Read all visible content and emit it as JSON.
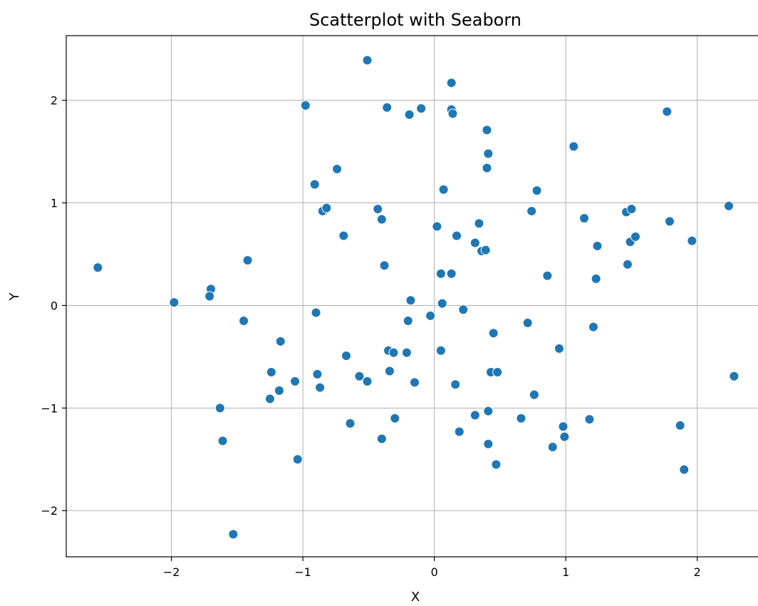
{
  "chart_data": {
    "type": "scatter",
    "title": "Scatterplot with Seaborn",
    "xlabel": "X",
    "ylabel": "Y",
    "xlim": [
      -2.8,
      2.5
    ],
    "ylim": [
      -2.45,
      2.63
    ],
    "grid": true,
    "point_color": "#1f77b4",
    "x_ticks": [
      {
        "value": -2,
        "label": "−2"
      },
      {
        "value": -1,
        "label": "−1"
      },
      {
        "value": 0,
        "label": "0"
      },
      {
        "value": 1,
        "label": "1"
      },
      {
        "value": 2,
        "label": "2"
      }
    ],
    "y_ticks": [
      {
        "value": -2,
        "label": "−2"
      },
      {
        "value": -1,
        "label": "−1"
      },
      {
        "value": 0,
        "label": "0"
      },
      {
        "value": 1,
        "label": "1"
      },
      {
        "value": 2,
        "label": "2"
      }
    ],
    "series": [
      {
        "points": [
          [
            -2.56,
            0.37
          ],
          [
            -1.98,
            0.03
          ],
          [
            -1.7,
            0.16
          ],
          [
            -1.71,
            0.09
          ],
          [
            -1.42,
            0.44
          ],
          [
            -1.45,
            -0.15
          ],
          [
            -1.63,
            -1.0
          ],
          [
            -1.61,
            -1.32
          ],
          [
            -1.53,
            -2.23
          ],
          [
            -1.24,
            -0.65
          ],
          [
            -1.25,
            -0.91
          ],
          [
            -1.17,
            -0.35
          ],
          [
            -1.18,
            -0.83
          ],
          [
            -1.06,
            -0.74
          ],
          [
            -1.04,
            -1.5
          ],
          [
            -0.98,
            1.95
          ],
          [
            -0.91,
            1.18
          ],
          [
            -0.9,
            -0.07
          ],
          [
            -0.89,
            -0.67
          ],
          [
            -0.87,
            -0.8
          ],
          [
            -0.85,
            0.92
          ],
          [
            -0.82,
            0.95
          ],
          [
            -0.74,
            1.33
          ],
          [
            -0.69,
            0.68
          ],
          [
            -0.67,
            -0.49
          ],
          [
            -0.64,
            -1.15
          ],
          [
            -0.57,
            -0.69
          ],
          [
            -0.51,
            -0.74
          ],
          [
            -0.51,
            2.39
          ],
          [
            -0.43,
            0.94
          ],
          [
            -0.4,
            0.84
          ],
          [
            -0.4,
            -1.3
          ],
          [
            -0.38,
            0.39
          ],
          [
            -0.36,
            1.93
          ],
          [
            -0.35,
            -0.44
          ],
          [
            -0.34,
            -0.64
          ],
          [
            -0.31,
            -0.46
          ],
          [
            -0.3,
            -1.1
          ],
          [
            -0.21,
            -0.46
          ],
          [
            -0.2,
            -0.15
          ],
          [
            -0.19,
            1.86
          ],
          [
            -0.18,
            0.05
          ],
          [
            -0.15,
            -0.75
          ],
          [
            -0.1,
            1.92
          ],
          [
            -0.03,
            -0.1
          ],
          [
            0.02,
            0.77
          ],
          [
            0.05,
            0.31
          ],
          [
            0.05,
            -0.44
          ],
          [
            0.06,
            0.02
          ],
          [
            0.07,
            1.13
          ],
          [
            0.13,
            2.17
          ],
          [
            0.13,
            1.91
          ],
          [
            0.13,
            0.31
          ],
          [
            0.14,
            1.87
          ],
          [
            0.16,
            -0.77
          ],
          [
            0.17,
            0.68
          ],
          [
            0.19,
            -1.23
          ],
          [
            0.22,
            -0.04
          ],
          [
            0.31,
            0.61
          ],
          [
            0.31,
            -1.07
          ],
          [
            0.34,
            0.8
          ],
          [
            0.36,
            0.53
          ],
          [
            0.39,
            0.54
          ],
          [
            0.4,
            1.71
          ],
          [
            0.4,
            1.34
          ],
          [
            0.41,
            1.48
          ],
          [
            0.41,
            -1.03
          ],
          [
            0.41,
            -1.35
          ],
          [
            0.43,
            -0.65
          ],
          [
            0.45,
            -0.27
          ],
          [
            0.47,
            -1.55
          ],
          [
            0.48,
            -0.65
          ],
          [
            0.66,
            -1.1
          ],
          [
            0.71,
            -0.17
          ],
          [
            0.74,
            0.92
          ],
          [
            0.76,
            -0.87
          ],
          [
            0.78,
            1.12
          ],
          [
            0.86,
            0.29
          ],
          [
            0.9,
            -1.38
          ],
          [
            0.95,
            -0.42
          ],
          [
            0.98,
            -1.18
          ],
          [
            0.99,
            -1.28
          ],
          [
            1.06,
            1.55
          ],
          [
            1.14,
            0.85
          ],
          [
            1.18,
            -1.11
          ],
          [
            1.21,
            -0.21
          ],
          [
            1.23,
            0.26
          ],
          [
            1.24,
            0.58
          ],
          [
            1.46,
            0.91
          ],
          [
            1.47,
            0.4
          ],
          [
            1.49,
            0.62
          ],
          [
            1.5,
            0.94
          ],
          [
            1.53,
            0.67
          ],
          [
            1.77,
            1.89
          ],
          [
            1.79,
            0.82
          ],
          [
            1.87,
            -1.17
          ],
          [
            1.9,
            -1.6
          ],
          [
            1.96,
            0.63
          ],
          [
            2.24,
            0.97
          ],
          [
            2.28,
            -0.69
          ]
        ]
      }
    ]
  }
}
